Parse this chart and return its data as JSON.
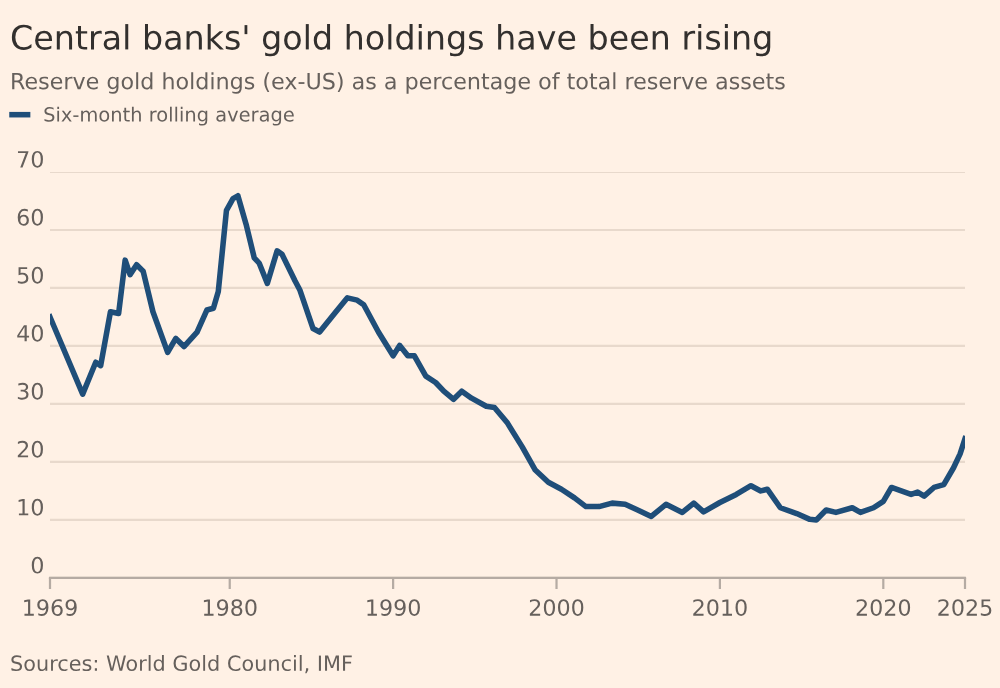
{
  "chart_data": {
    "type": "line",
    "title": "Central banks' gold holdings have been rising",
    "subtitle": "Reserve gold holdings (ex-US) as a percentage of total reserve assets",
    "annotations": [
      "Sources: World Gold Council, IMF"
    ],
    "x": [
      1969.0,
      1971.0,
      1971.8,
      1972.1,
      1972.7,
      1973.2,
      1973.6,
      1973.9,
      1974.3,
      1974.7,
      1975.3,
      1976.2,
      1976.7,
      1977.2,
      1978.0,
      1978.6,
      1979.0,
      1979.3,
      1979.8,
      1980.2,
      1980.5,
      1981.0,
      1981.5,
      1981.8,
      1982.3,
      1982.9,
      1983.2,
      1984.0,
      1984.3,
      1985.1,
      1985.5,
      1986.5,
      1987.2,
      1987.8,
      1988.2,
      1989.1,
      1990.0,
      1990.4,
      1990.9,
      1991.3,
      1992.0,
      1992.6,
      1993.1,
      1993.7,
      1994.2,
      1994.8,
      1995.7,
      1996.2,
      1997.0,
      1997.9,
      1998.7,
      1999.5,
      2000.3,
      2001.1,
      2001.8,
      2002.6,
      2003.4,
      2004.2,
      2004.9,
      2005.8,
      2006.7,
      2007.7,
      2008.4,
      2009.0,
      2010.0,
      2011.0,
      2011.9,
      2012.5,
      2012.9,
      2013.7,
      2014.7,
      2015.5,
      2015.9,
      2016.5,
      2017.1,
      2018.1,
      2018.6,
      2019.4,
      2020.0,
      2020.5,
      2021.1,
      2021.7,
      2022.1,
      2022.5,
      2023.1,
      2023.7,
      2024.3,
      2024.7,
      2025.0
    ],
    "series": [
      {
        "name": "Six-month rolling average",
        "color": "#1f4e79",
        "values": [
          45.0,
          31.7,
          37.2,
          36.6,
          45.9,
          45.6,
          54.8,
          52.3,
          54.0,
          52.9,
          45.9,
          38.9,
          41.3,
          39.9,
          42.4,
          46.2,
          46.5,
          49.4,
          63.4,
          65.4,
          65.9,
          61.0,
          55.2,
          54.3,
          50.8,
          56.4,
          55.8,
          51.2,
          49.6,
          43.0,
          42.4,
          45.9,
          48.3,
          47.9,
          47.1,
          42.4,
          38.3,
          40.1,
          38.3,
          38.3,
          34.8,
          33.7,
          32.2,
          30.8,
          32.2,
          31.0,
          29.6,
          29.4,
          26.7,
          22.6,
          18.6,
          16.5,
          15.3,
          13.8,
          12.3,
          12.3,
          12.9,
          12.7,
          11.8,
          10.6,
          12.7,
          11.3,
          12.9,
          11.4,
          13.0,
          14.4,
          15.9,
          15.0,
          15.3,
          12.1,
          11.1,
          10.1,
          10.0,
          11.7,
          11.3,
          12.1,
          11.3,
          12.1,
          13.2,
          15.6,
          15.0,
          14.4,
          14.8,
          14.1,
          15.6,
          16.1,
          19.0,
          21.4,
          24.0
        ]
      }
    ],
    "xlim": [
      1969,
      2025
    ],
    "xticks": [
      1969,
      1980,
      1990,
      2000,
      2010,
      2020,
      2025
    ],
    "ylim": [
      0,
      70
    ],
    "yticks": [
      0,
      10,
      20,
      30,
      40,
      50,
      60,
      70
    ],
    "grid": "y",
    "legend": "top left"
  }
}
